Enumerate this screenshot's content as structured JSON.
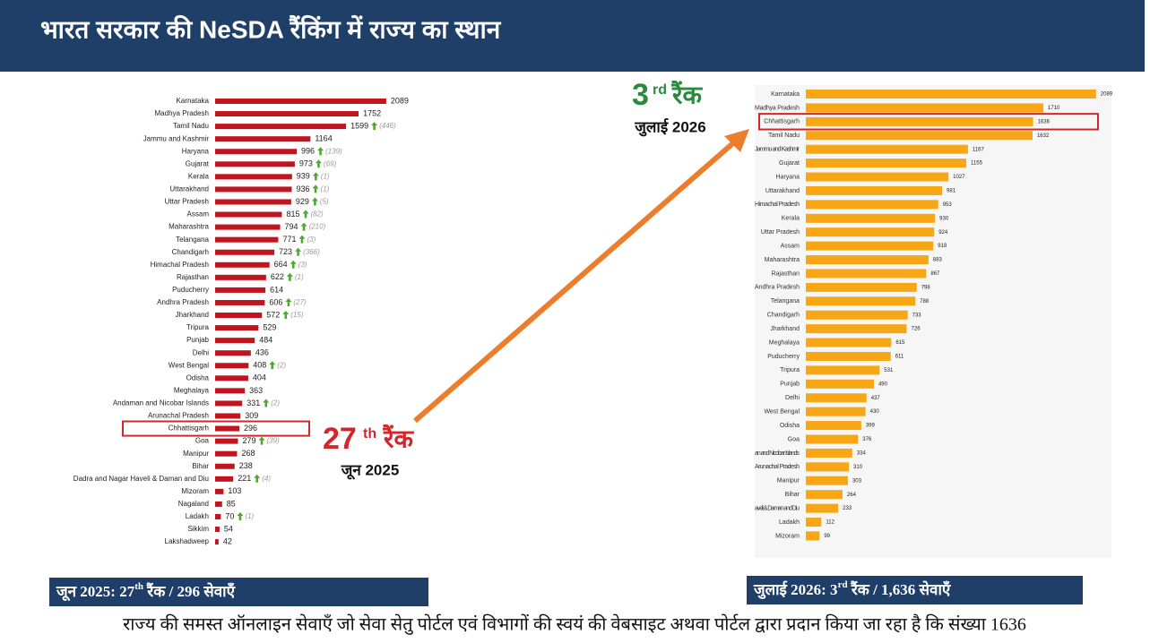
{
  "header": {
    "title": "भारत सरकार की NeSDA रैंकिंग में राज्य का स्थान"
  },
  "chart_data": [
    {
      "type": "bar",
      "orientation": "horizontal",
      "color": "#c0141e",
      "xlim": [
        0,
        2200
      ],
      "highlight": "Chhattisgarh",
      "categories": [
        "Karnataka",
        "Madhya Pradesh",
        "Tamil Nadu",
        "Jammu and Kashmir",
        "Haryana",
        "Gujarat",
        "Kerala",
        "Uttarakhand",
        "Uttar Pradesh",
        "Assam",
        "Maharashtra",
        "Telangana",
        "Chandigarh",
        "Himachal Pradesh",
        "Rajasthan",
        "Puducherry",
        "Andhra Pradesh",
        "Jharkhand",
        "Tripura",
        "Punjab",
        "Delhi",
        "West Bengal",
        "Odisha",
        "Meghalaya",
        "Andaman and Nicobar Islands",
        "Arunachal Pradesh",
        "Chhattisgarh",
        "Goa",
        "Manipur",
        "Bihar",
        "Dadra and Nagar Haveli & Daman and Diu",
        "Mizoram",
        "Nagaland",
        "Ladakh",
        "Sikkim",
        "Lakshadweep"
      ],
      "values": [
        2089,
        1752,
        1599,
        1164,
        996,
        973,
        939,
        936,
        929,
        815,
        794,
        771,
        723,
        664,
        622,
        614,
        606,
        572,
        529,
        484,
        436,
        408,
        404,
        363,
        331,
        309,
        296,
        279,
        268,
        238,
        221,
        103,
        85,
        70,
        54,
        42
      ],
      "change_labels": [
        null,
        null,
        "(446)",
        null,
        "(139)",
        "(69)",
        "(1)",
        "(1)",
        "(5)",
        "(82)",
        "(210)",
        "(3)",
        "(366)",
        "(3)",
        "(1)",
        null,
        "(27)",
        "(15)",
        null,
        null,
        null,
        "(2)",
        null,
        null,
        "(2)",
        null,
        null,
        "(39)",
        null,
        null,
        "(4)",
        null,
        null,
        "(1)",
        null,
        null
      ]
    },
    {
      "type": "bar",
      "orientation": "horizontal",
      "color": "#f7a616",
      "xlim": [
        0,
        2200
      ],
      "highlight": "Chhattisgarh",
      "categories": [
        "Karnataka",
        "Madhya Pradesh",
        "Chhattisgarh",
        "Tamil Nadu",
        "Jammu and Kashmir",
        "Gujarat",
        "Haryana",
        "Uttarakhand",
        "Himachal Pradesh",
        "Kerala",
        "Uttar Pradesh",
        "Assam",
        "Maharashtra",
        "Rajasthan",
        "Andhra Pradesh",
        "Telangana",
        "Chandigarh",
        "Jharkhand",
        "Meghalaya",
        "Puducherry",
        "Tripura",
        "Punjab",
        "Delhi",
        "West Bengal",
        "Odisha",
        "Goa",
        "an and Nicobar Islands",
        "Arunachal Pradesh",
        "Manipur",
        "Bihar",
        "aveli & Daman and Diu",
        "Ladakh",
        "Mizoram"
      ],
      "values": [
        2089,
        1710,
        1636,
        1632,
        1167,
        1155,
        1027,
        981,
        953,
        930,
        924,
        918,
        883,
        867,
        798,
        788,
        733,
        726,
        615,
        611,
        531,
        490,
        437,
        430,
        399,
        376,
        334,
        310,
        303,
        264,
        233,
        112,
        99
      ]
    }
  ],
  "annotations": [
    {
      "number": "27",
      "suffix": "th",
      "label": "रैंक",
      "date": "जून 2025"
    },
    {
      "number": "3",
      "suffix": "rd",
      "label": "रैंक",
      "date": "जुलाई 2026"
    }
  ],
  "captions": [
    {
      "prefix": "जून 2025: 27",
      "sup": "th",
      "suffix": " रैंक  / 296 सेवाएँ"
    },
    {
      "prefix": "जुलाई 2026: 3",
      "sup": "rd",
      "suffix": " रैंक  / 1,636 सेवाएँ"
    }
  ],
  "footer": "राज्य की समस्त ऑनलाइन सेवाएँ जो सेवा सेतु पोर्टल एवं विभागों की स्वयं की वेबसाइट अथवा पोर्टल द्वारा प्रदान किया जा रहा है कि संख्या 1636"
}
